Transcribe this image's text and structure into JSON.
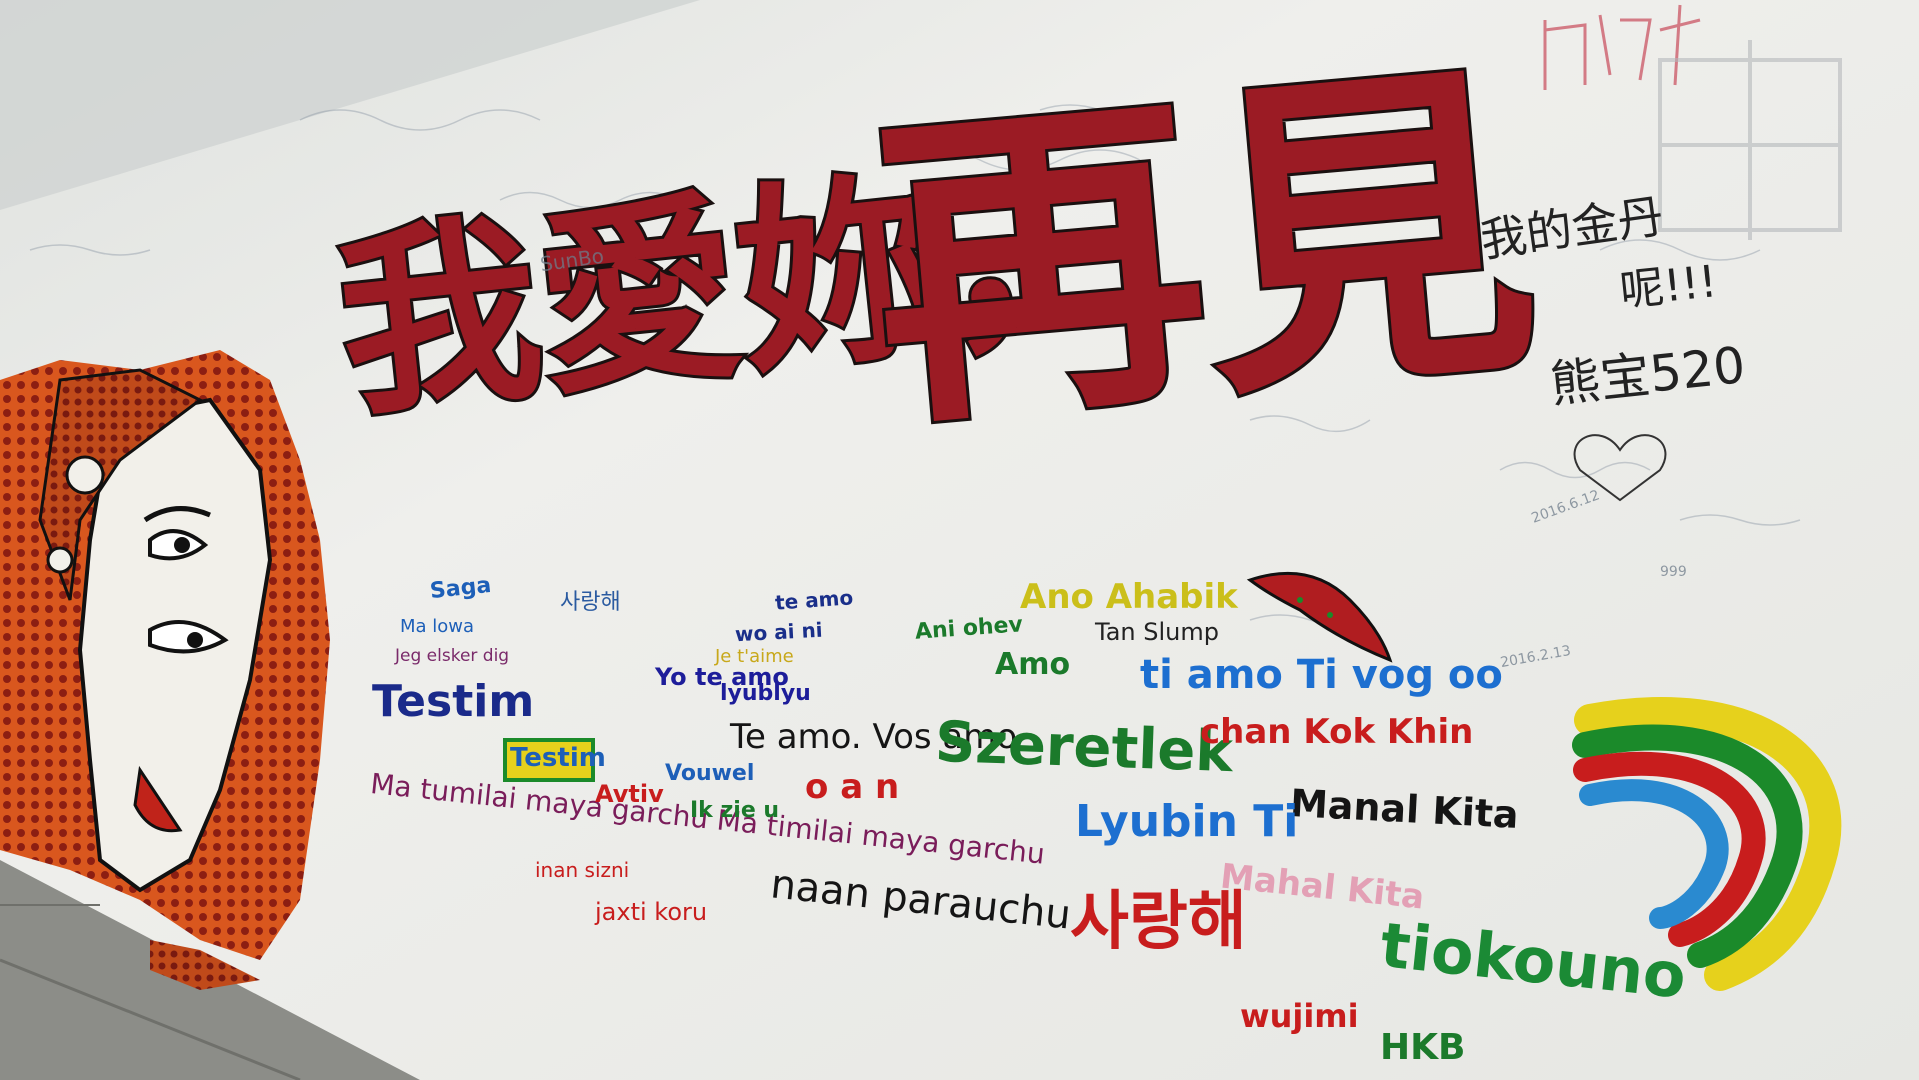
{
  "photo": {
    "subject": "graffiti wall in an underpass",
    "colors": {
      "wall": "#ecedea",
      "floor": "#8c8d88",
      "headline_red": "#9b1b24",
      "outline": "#1a1010",
      "comic_hair": "#d9571e",
      "comic_dots": "#8c1e12"
    }
  },
  "headline": {
    "left": "我愛妳，",
    "right": "再見"
  },
  "top_right": {
    "line1": "我的金丹",
    "line2": "呢!!!",
    "line3": "熊宝520"
  },
  "phrases": [
    {
      "id": "saga",
      "text": "Saga",
      "color": "#1d5fb8"
    },
    {
      "id": "ma-lowa",
      "text": "Ma lowa",
      "color": "#1d5fb8"
    },
    {
      "id": "jeg-elsker-dig",
      "text": "Jeg elsker dig",
      "color": "#7a2a6a"
    },
    {
      "id": "korean-love-small",
      "text": "사랑해",
      "color": "#2a5aa0"
    },
    {
      "id": "te-amo-top",
      "text": "te amo",
      "color": "#1a2f8a"
    },
    {
      "id": "wo-ai-ni",
      "text": "wo ai ni",
      "color": "#1a2f8a"
    },
    {
      "id": "ani-ohev",
      "text": "Ani ohev",
      "color": "#1b7a2b"
    },
    {
      "id": "je-taime",
      "text": "Je t'aime",
      "color": "#8a2a1a"
    },
    {
      "id": "yo-te-amo",
      "text": "Yo te amo",
      "color": "#1d1d9a"
    },
    {
      "id": "aa-rabik",
      "text": "Ano Ahabik",
      "color": "#cbbf1a"
    },
    {
      "id": "tan-slump",
      "text": "Tan Slump",
      "color": "#222222"
    },
    {
      "id": "amo",
      "text": "Amo",
      "color": "#1b7a2b"
    },
    {
      "id": "ti-amo",
      "text": "ti amo Ti vog oo",
      "color": "#1d6fd0"
    },
    {
      "id": "testim",
      "text": "Testim",
      "color": "#1a2a8a"
    },
    {
      "id": "testim-box",
      "text": "Testim",
      "color": "#1d5fb8"
    },
    {
      "id": "te-amo-vos-amo",
      "text": "Te amo. Vos amo",
      "color": "#151515"
    },
    {
      "id": "szeretlek",
      "text": "Szeretlek",
      "color": "#1b7a2b"
    },
    {
      "id": "chan-kok-khin",
      "text": "chan Kok Khin",
      "color": "#c81d1d"
    },
    {
      "id": "manal-kita",
      "text": "Manal Kita",
      "color": "#151515"
    },
    {
      "id": "ma-tumilai",
      "text": "Ma tumilai maya garchu Ma timilai maya garchu",
      "color": "#7a1d5a"
    },
    {
      "id": "inan-sizni",
      "text": "inan sizni",
      "color": "#c81d1d"
    },
    {
      "id": "jaxti-koru",
      "text": "jaxti koru",
      "color": "#c81d1d"
    },
    {
      "id": "nan-parauchu",
      "text": "naan parauchu",
      "color": "#151515"
    },
    {
      "id": "lyubln",
      "text": "Lyubin Ti",
      "color": "#1d6fd0"
    },
    {
      "id": "mahal",
      "text": "Mahal Kita",
      "color": "#e3a0b5"
    },
    {
      "id": "saranghae",
      "text": "사랑해",
      "color": "#c81d1d"
    },
    {
      "id": "tiokouno",
      "text": "tiokouno",
      "color": "#1b8a35"
    },
    {
      "id": "wujimi",
      "text": "wujimi",
      "color": "#c81d1d"
    },
    {
      "id": "hkb",
      "text": "HKB",
      "color": "#1b7a2b"
    },
    {
      "id": "vouwel",
      "text": "Vouwel",
      "color": "#1d5fb8"
    },
    {
      "id": "ik-zie-u",
      "text": "Ik zie u",
      "color": "#1b7a2b"
    },
    {
      "id": "lyublyu",
      "text": "lyublyu",
      "color": "#1d1d9a"
    },
    {
      "id": "avtiv",
      "text": "Avtiv",
      "color": "#c81d1d"
    },
    {
      "id": "o-a-n",
      "text": "o a n",
      "color": "#c81d1d"
    }
  ],
  "scrawls": {
    "sunbo": "SunBo",
    "date1": "2016.6.12",
    "date2": "2016.2.13",
    "num": "999"
  }
}
